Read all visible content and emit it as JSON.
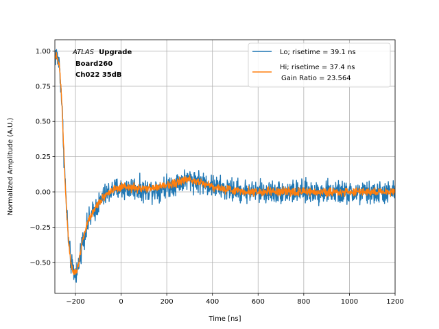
{
  "chart_data": {
    "type": "line",
    "xlabel": "Time [ns]",
    "ylabel": "Normalized Amplitude (A.U.)",
    "xlim": [
      -290,
      1200
    ],
    "ylim": [
      -0.72,
      1.08
    ],
    "xticks": [
      -200,
      0,
      200,
      400,
      600,
      800,
      1000,
      1200
    ],
    "yticks": [
      -0.5,
      -0.25,
      0.0,
      0.25,
      0.5,
      0.75,
      1.0
    ],
    "xtick_labels": [
      "−200",
      "0",
      "200",
      "400",
      "600",
      "800",
      "1000",
      "1200"
    ],
    "ytick_labels": [
      "−0.50",
      "−0.25",
      "0.00",
      "0.25",
      "0.50",
      "0.75",
      "1.00"
    ],
    "grid": true,
    "annotation": {
      "experiment": "ATLAS",
      "tag": "Upgrade",
      "line2": "Board260",
      "line3": "Ch022 35dB"
    },
    "legend_position": "top-right",
    "series": [
      {
        "name": "Lo; risetime = 39.1 ns",
        "color": "#1f77b4",
        "noise": 0.05,
        "x": [
          -290,
          -280,
          -270,
          -260,
          -250,
          -240,
          -230,
          -220,
          -210,
          -200,
          -190,
          -180,
          -170,
          -160,
          -150,
          -140,
          -120,
          -100,
          -80,
          -60,
          -40,
          -20,
          0,
          50,
          100,
          150,
          200,
          250,
          300,
          350,
          400,
          450,
          500,
          600,
          700,
          800,
          900,
          1000,
          1100,
          1200
        ],
        "values": [
          0.97,
          0.96,
          0.9,
          0.65,
          0.25,
          -0.1,
          -0.35,
          -0.5,
          -0.57,
          -0.58,
          -0.55,
          -0.45,
          -0.36,
          -0.3,
          -0.25,
          -0.2,
          -0.14,
          -0.09,
          -0.04,
          -0.01,
          0.01,
          0.02,
          0.02,
          0.03,
          0.01,
          0.02,
          0.04,
          0.07,
          0.09,
          0.07,
          0.04,
          0.02,
          0.01,
          0.0,
          0.0,
          0.0,
          0.0,
          -0.01,
          -0.01,
          0.0
        ]
      },
      {
        "name": "Hi; risetime = 37.4 ns",
        "name_extra": "Gain Ratio = 23.564",
        "color": "#ff7f0e",
        "noise": 0.018,
        "x": [
          -290,
          -280,
          -270,
          -260,
          -250,
          -240,
          -230,
          -220,
          -210,
          -200,
          -190,
          -180,
          -170,
          -160,
          -150,
          -140,
          -120,
          -100,
          -80,
          -60,
          -40,
          -20,
          0,
          50,
          100,
          150,
          200,
          250,
          300,
          350,
          400,
          450,
          500,
          600,
          700,
          800,
          900,
          1000,
          1100,
          1200
        ],
        "values": [
          0.97,
          0.96,
          0.9,
          0.65,
          0.25,
          -0.1,
          -0.35,
          -0.5,
          -0.56,
          -0.57,
          -0.54,
          -0.44,
          -0.35,
          -0.29,
          -0.24,
          -0.19,
          -0.13,
          -0.08,
          -0.04,
          -0.01,
          0.01,
          0.02,
          0.03,
          0.03,
          0.02,
          0.03,
          0.05,
          0.07,
          0.09,
          0.07,
          0.04,
          0.02,
          0.01,
          0.0,
          0.0,
          0.0,
          0.0,
          0.0,
          0.0,
          0.0
        ]
      }
    ]
  }
}
